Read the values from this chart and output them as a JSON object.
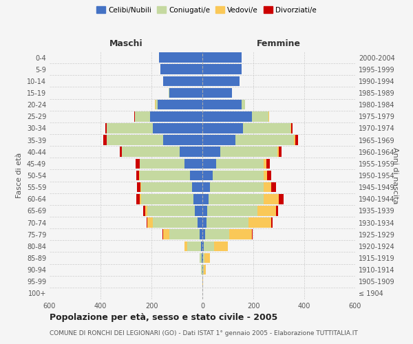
{
  "age_groups": [
    "100+",
    "95-99",
    "90-94",
    "85-89",
    "80-84",
    "75-79",
    "70-74",
    "65-69",
    "60-64",
    "55-59",
    "50-54",
    "45-49",
    "40-44",
    "35-39",
    "30-34",
    "25-29",
    "20-24",
    "15-19",
    "10-14",
    "5-9",
    "0-4"
  ],
  "birth_years": [
    "≤ 1904",
    "1905-1909",
    "1910-1914",
    "1915-1919",
    "1920-1924",
    "1925-1929",
    "1930-1934",
    "1935-1939",
    "1940-1944",
    "1945-1949",
    "1950-1954",
    "1955-1959",
    "1960-1964",
    "1965-1969",
    "1970-1974",
    "1975-1979",
    "1980-1984",
    "1985-1989",
    "1990-1994",
    "1995-1999",
    "2000-2004"
  ],
  "colors": {
    "celibi": "#4472C4",
    "coniugati": "#C5D9A0",
    "vedovi": "#FAC858",
    "divorziati": "#CC0000"
  },
  "maschi": {
    "celibi": [
      0,
      0,
      1,
      2,
      5,
      10,
      20,
      30,
      35,
      40,
      50,
      70,
      90,
      155,
      195,
      205,
      175,
      130,
      155,
      165,
      170
    ],
    "coniugati": [
      0,
      1,
      4,
      8,
      55,
      120,
      175,
      185,
      205,
      200,
      195,
      175,
      225,
      220,
      180,
      60,
      10,
      2,
      0,
      0,
      0
    ],
    "vedovi": [
      0,
      0,
      1,
      2,
      10,
      25,
      20,
      10,
      5,
      3,
      3,
      2,
      2,
      2,
      1,
      1,
      1,
      0,
      0,
      0,
      0
    ],
    "divorziati": [
      0,
      0,
      0,
      0,
      0,
      2,
      3,
      8,
      15,
      15,
      12,
      15,
      8,
      12,
      5,
      1,
      0,
      0,
      0,
      0,
      0
    ]
  },
  "femmine": {
    "nubili": [
      0,
      0,
      2,
      3,
      5,
      10,
      15,
      20,
      25,
      30,
      40,
      55,
      70,
      130,
      160,
      195,
      155,
      115,
      145,
      155,
      155
    ],
    "coniugate": [
      0,
      1,
      3,
      5,
      40,
      95,
      165,
      195,
      215,
      210,
      200,
      185,
      225,
      230,
      185,
      65,
      12,
      2,
      0,
      0,
      0
    ],
    "vedove": [
      0,
      1,
      8,
      22,
      55,
      90,
      90,
      75,
      60,
      30,
      15,
      10,
      5,
      5,
      3,
      2,
      1,
      0,
      0,
      0,
      0
    ],
    "divorziate": [
      0,
      0,
      0,
      0,
      0,
      3,
      5,
      8,
      20,
      18,
      15,
      15,
      10,
      10,
      5,
      1,
      0,
      0,
      0,
      0,
      0
    ]
  },
  "xlim": 600,
  "title_main": "Popolazione per età, sesso e stato civile - 2005",
  "title_sub": "COMUNE DI RONCHI DEI LEGIONARI (GO) - Dati ISTAT 1° gennaio 2005 - Elaborazione TUTTITALIA.IT",
  "ylabel_left": "Fasce di età",
  "ylabel_right": "Anni di nascita",
  "xlabel_left": "Maschi",
  "xlabel_right": "Femmine",
  "background_color": "#f5f5f5",
  "plot_bg": "#f5f5f5"
}
